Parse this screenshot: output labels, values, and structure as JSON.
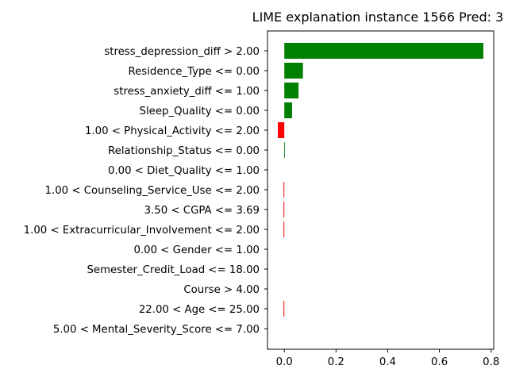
{
  "chart_data": {
    "type": "bar",
    "orientation": "horizontal",
    "title": "LIME explanation instance 1566 Pred: 3",
    "xlabel": "",
    "ylabel": "",
    "xlim": [
      -0.065,
      0.81
    ],
    "xticks": [
      0.0,
      0.2,
      0.4,
      0.6,
      0.8
    ],
    "xtick_labels": [
      "0.0",
      "0.2",
      "0.4",
      "0.6",
      "0.8"
    ],
    "grid": false,
    "positive_color": "#008000",
    "negative_color": "#ff0000",
    "categories": [
      "stress_depression_diff > 2.00",
      "Residence_Type <= 0.00",
      "stress_anxiety_diff <= 1.00",
      "Sleep_Quality <= 0.00",
      "1.00 < Physical_Activity <= 2.00",
      "Relationship_Status <= 0.00",
      "0.00 < Diet_Quality <= 1.00",
      "1.00 < Counseling_Service_Use <= 2.00",
      "3.50 < CGPA <= 3.69",
      "1.00 < Extracurricular_Involvement <= 2.00",
      "0.00 < Gender <= 1.00",
      "Semester_Credit_Load <= 18.00",
      "Course > 4.00",
      "22.00 < Age <= 25.00",
      "5.00 < Mental_Severity_Score <= 7.00"
    ],
    "values": [
      0.77,
      0.072,
      0.055,
      0.03,
      -0.025,
      0.002,
      0.0,
      -0.003,
      -0.003,
      -0.003,
      0.0,
      0.0,
      0.0,
      -0.003,
      0.0
    ]
  }
}
